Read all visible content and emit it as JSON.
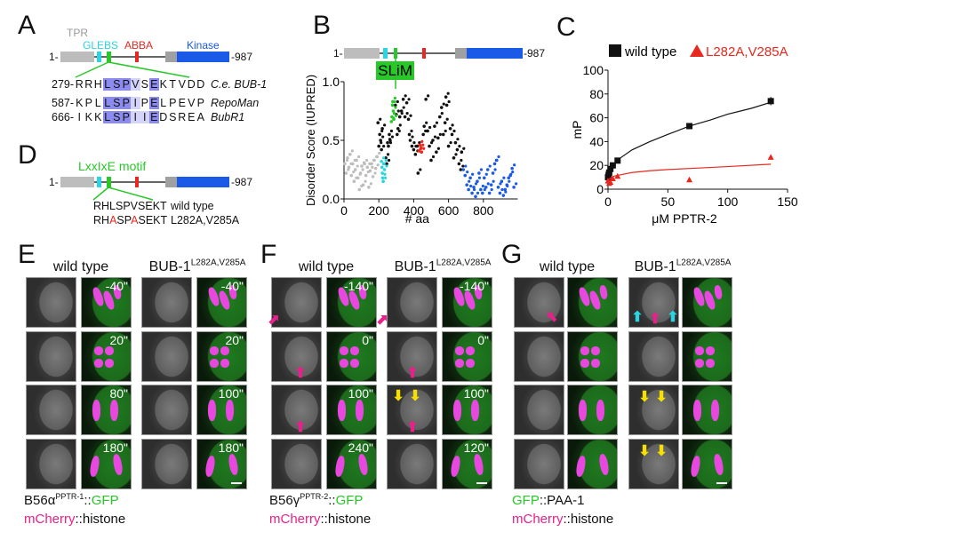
{
  "panel_letters": {
    "A": "A",
    "B": "B",
    "C": "C",
    "D": "D",
    "E": "E",
    "F": "F",
    "G": "G"
  },
  "colors": {
    "tpr": "#bdbdbd",
    "glebs": "#2ad4e0",
    "motif": "#28c828",
    "abba": "#e8281e",
    "kinase": "#1a5ae6",
    "kinase_linker": "#a0a0a0",
    "magenta": "#e8208c",
    "yellow": "#f5e000"
  },
  "panelA": {
    "domains": {
      "tpr": "TPR",
      "glebs": "GLEBS",
      "abba": "ABBA",
      "kinase": "Kinase"
    },
    "start": "1-",
    "end": "-987",
    "alignment": [
      {
        "prefix": "279-",
        "residues": [
          "R",
          "R",
          "H",
          "L",
          "S",
          "P",
          "V",
          "S",
          "E",
          "K",
          "T",
          "V",
          "D",
          "D"
        ],
        "conservation": [
          "",
          "",
          "",
          "dark",
          "dark",
          "dark",
          "light",
          "",
          "dark",
          "",
          "",
          "",
          "",
          ""
        ],
        "species": "C.e. BUB-1"
      },
      {
        "prefix": "587-",
        "residues": [
          "K",
          "P",
          "L",
          "L",
          "S",
          "P",
          "I",
          "P",
          "E",
          "L",
          "P",
          "E",
          "V",
          "P"
        ],
        "conservation": [
          "",
          "",
          "",
          "dark",
          "dark",
          "dark",
          "light",
          "",
          "dark",
          "",
          "",
          "",
          "",
          ""
        ],
        "species": "RepoMan"
      },
      {
        "prefix": "666-",
        "residues": [
          "I",
          "K",
          "K",
          "L",
          "S",
          "P",
          "I",
          "I",
          "E",
          "D",
          "S",
          "R",
          "E",
          "A"
        ],
        "conservation": [
          "",
          "",
          "",
          "dark",
          "dark",
          "dark",
          "light",
          "light",
          "dark",
          "",
          "",
          "",
          "",
          ""
        ],
        "species": "BubR1"
      }
    ]
  },
  "panelD": {
    "motif_label": "LxxIxE motif",
    "start": "1-",
    "end": "-987",
    "sequences": [
      {
        "parts": [
          {
            "t": "RHLSPVSEKT",
            "mut": false
          }
        ],
        "label": "wild type"
      },
      {
        "parts": [
          {
            "t": "RH",
            "mut": false
          },
          {
            "t": "A",
            "mut": true
          },
          {
            "t": "SP",
            "mut": false
          },
          {
            "t": "A",
            "mut": true
          },
          {
            "t": "SEKT",
            "mut": false
          }
        ],
        "label": "L282A,V285A"
      }
    ]
  },
  "panelB": {
    "start": "1-",
    "end": "-987",
    "slim_label": "SLiM"
  },
  "chart_data": [
    {
      "panel": "B",
      "type": "scatter",
      "xlabel": "# aa",
      "ylabel": "Disorder Score (IUPRED)",
      "xlim": [
        0,
        987
      ],
      "ylim": [
        0,
        1.0
      ],
      "xticks": [
        "0",
        "200",
        "400",
        "600",
        "800"
      ],
      "yticks": [
        "0.0",
        "0.5",
        "1.0"
      ],
      "series": [
        {
          "color": "#bdbdbd",
          "points": [
            [
              5,
              0.3
            ],
            [
              12,
              0.22
            ],
            [
              20,
              0.35
            ],
            [
              28,
              0.27
            ],
            [
              35,
              0.38
            ],
            [
              42,
              0.2
            ],
            [
              50,
              0.3
            ],
            [
              58,
              0.15
            ],
            [
              65,
              0.25
            ],
            [
              72,
              0.33
            ],
            [
              80,
              0.18
            ],
            [
              88,
              0.08
            ],
            [
              95,
              0.22
            ],
            [
              102,
              0.28
            ],
            [
              110,
              0.12
            ],
            [
              118,
              0.3
            ],
            [
              126,
              0.2
            ],
            [
              134,
              0.27
            ],
            [
              142,
              0.1
            ],
            [
              150,
              0.24
            ],
            [
              158,
              0.3
            ],
            [
              166,
              0.19
            ],
            [
              174,
              0.33
            ],
            [
              182,
              0.26
            ],
            [
              190,
              0.36
            ]
          ]
        },
        {
          "color": "#111111",
          "points": [
            [
              195,
              0.65
            ],
            [
              200,
              0.45
            ],
            [
              205,
              0.55
            ],
            [
              210,
              0.5
            ],
            [
              215,
              0.42
            ],
            [
              220,
              0.6
            ],
            [
              240,
              0.35
            ],
            [
              245,
              0.3
            ],
            [
              250,
              0.48
            ],
            [
              255,
              0.45
            ],
            [
              260,
              0.55
            ],
            [
              265,
              0.5
            ],
            [
              295,
              0.8
            ],
            [
              300,
              0.72
            ],
            [
              305,
              0.55
            ],
            [
              310,
              0.6
            ],
            [
              320,
              0.7
            ],
            [
              330,
              0.75
            ],
            [
              340,
              0.85
            ],
            [
              350,
              0.7
            ],
            [
              360,
              0.82
            ],
            [
              370,
              0.68
            ],
            [
              375,
              0.55
            ],
            [
              380,
              0.5
            ],
            [
              390,
              0.45
            ],
            [
              400,
              0.42
            ],
            [
              410,
              0.38
            ],
            [
              420,
              0.45
            ],
            [
              425,
              0.22
            ],
            [
              455,
              0.55
            ],
            [
              460,
              0.62
            ],
            [
              470,
              0.85
            ],
            [
              480,
              0.58
            ],
            [
              490,
              0.45
            ],
            [
              500,
              0.33
            ],
            [
              510,
              0.5
            ],
            [
              520,
              0.62
            ],
            [
              530,
              0.4
            ],
            [
              540,
              0.52
            ],
            [
              550,
              0.7
            ],
            [
              560,
              0.78
            ],
            [
              570,
              0.55
            ],
            [
              580,
              0.65
            ],
            [
              585,
              0.87
            ],
            [
              590,
              0.8
            ],
            [
              600,
              0.45
            ],
            [
              610,
              0.6
            ],
            [
              620,
              0.55
            ],
            [
              630,
              0.35
            ],
            [
              640,
              0.48
            ],
            [
              650,
              0.42
            ],
            [
              660,
              0.3
            ],
            [
              670,
              0.25
            ],
            [
              675,
              0.4
            ]
          ]
        },
        {
          "color": "#2ad4e0",
          "points": [
            [
              215,
              0.32
            ],
            [
              218,
              0.27
            ],
            [
              220,
              0.22
            ],
            [
              222,
              0.18
            ],
            [
              225,
              0.15
            ],
            [
              228,
              0.3
            ],
            [
              232,
              0.25
            ]
          ]
        },
        {
          "color": "#28c828",
          "points": [
            [
              272,
              0.66
            ],
            [
              275,
              0.7
            ],
            [
              278,
              0.8
            ],
            [
              280,
              0.83
            ],
            [
              283,
              0.75
            ],
            [
              286,
              0.68
            ]
          ]
        },
        {
          "color": "#e8281e",
          "points": [
            [
              430,
              0.41
            ],
            [
              435,
              0.46
            ],
            [
              440,
              0.43
            ],
            [
              445,
              0.4
            ]
          ]
        },
        {
          "color": "#1a5ae6",
          "points": [
            [
              685,
              0.25
            ],
            [
              695,
              0.2
            ],
            [
              705,
              0.12
            ],
            [
              715,
              0.08
            ],
            [
              725,
              0.18
            ],
            [
              735,
              0.05
            ],
            [
              745,
              0.1
            ],
            [
              755,
              0.02
            ],
            [
              765,
              0.15
            ],
            [
              775,
              0.22
            ],
            [
              785,
              0.08
            ],
            [
              795,
              0.05
            ],
            [
              805,
              0.18
            ],
            [
              815,
              0.1
            ],
            [
              825,
              0.25
            ],
            [
              835,
              0.05
            ],
            [
              845,
              0.12
            ],
            [
              855,
              0.22
            ],
            [
              865,
              0.3
            ],
            [
              875,
              0.33
            ],
            [
              885,
              0.1
            ],
            [
              895,
              0.05
            ],
            [
              905,
              0.15
            ],
            [
              915,
              0.03
            ],
            [
              925,
              0.08
            ],
            [
              935,
              0.12
            ],
            [
              945,
              0.18
            ],
            [
              955,
              0.2
            ],
            [
              965,
              0.26
            ],
            [
              975,
              0.1
            ]
          ]
        }
      ]
    },
    {
      "panel": "C",
      "type": "scatter",
      "xlabel": "μM PPTR-2",
      "ylabel": "mP",
      "xlim": [
        0,
        150
      ],
      "ylim": [
        0,
        100
      ],
      "xticks": [
        "0",
        "50",
        "100",
        "150"
      ],
      "yticks": [
        "0",
        "20",
        "40",
        "60",
        "80",
        "100"
      ],
      "legend_position": "top",
      "series": [
        {
          "name": "wild type",
          "color": "#111111",
          "marker": "square",
          "points": [
            [
              0,
              10
            ],
            [
              0.5,
              12
            ],
            [
              1,
              14
            ],
            [
              2,
              17
            ],
            [
              4,
              20
            ],
            [
              8,
              24
            ],
            [
              68,
              53
            ],
            [
              136,
              74
            ]
          ],
          "error": [
            0,
            0,
            0,
            0,
            0,
            0,
            1.5,
            3.5
          ],
          "fit": [
            [
              0,
              8
            ],
            [
              2,
              15
            ],
            [
              5,
              21
            ],
            [
              10,
              26
            ],
            [
              20,
              33
            ],
            [
              35,
              40
            ],
            [
              50,
              46
            ],
            [
              68,
              53
            ],
            [
              85,
              58
            ],
            [
              100,
              63
            ],
            [
              120,
              68
            ],
            [
              136,
              73
            ]
          ]
        },
        {
          "name": "L282A,V285A",
          "color": "#e8281e",
          "marker": "triangle",
          "points": [
            [
              0,
              7
            ],
            [
              1,
              5
            ],
            [
              2,
              6
            ],
            [
              4,
              9
            ],
            [
              8,
              11
            ],
            [
              68,
              8
            ],
            [
              136,
              27
            ]
          ],
          "fit": [
            [
              0,
              8
            ],
            [
              5,
              11
            ],
            [
              10,
              12
            ],
            [
              20,
              14
            ],
            [
              35,
              15.5
            ],
            [
              50,
              16.5
            ],
            [
              70,
              17.5
            ],
            [
              100,
              19
            ],
            [
              136,
              21
            ]
          ]
        }
      ]
    }
  ],
  "bottom": [
    {
      "letter": "E",
      "wt": "wild type",
      "mut": "BUB-1",
      "mut_sup": "L282A,V285A",
      "times_wt": [
        "-40\"",
        "20\"",
        "80\"",
        "180\""
      ],
      "times_mut": [
        "-40\"",
        "20\"",
        "100\"",
        "180\""
      ],
      "cap1": {
        "a": "B56α",
        "sup": "PPTR-1",
        "b": "::",
        "c": "GFP"
      },
      "cap2": {
        "a": "mCherry",
        "b": "::histone"
      }
    },
    {
      "letter": "F",
      "wt": "wild type",
      "mut": "BUB-1",
      "mut_sup": "L282A,V285A",
      "times_wt": [
        "-140\"",
        "0\"",
        "100\"",
        "240\""
      ],
      "times_mut": [
        "-140\"",
        "0\"",
        "100\"",
        "120\""
      ],
      "cap1": {
        "a": "B56γ",
        "sup": "PPTR-2",
        "b": "::",
        "c": "GFP"
      },
      "cap2": {
        "a": "mCherry",
        "b": "::histone"
      }
    },
    {
      "letter": "G",
      "wt": "wild type",
      "mut": "BUB-1",
      "mut_sup": "L282A,V285A",
      "times_wt": [
        "",
        "",
        "",
        ""
      ],
      "times_mut": [
        "",
        "",
        "",
        ""
      ],
      "cap1": {
        "a": "",
        "sup": "",
        "b": "::PAA-1",
        "c": "GFP",
        "green_first": true
      },
      "cap2": {
        "a": "mCherry",
        "b": "::histone"
      }
    }
  ]
}
